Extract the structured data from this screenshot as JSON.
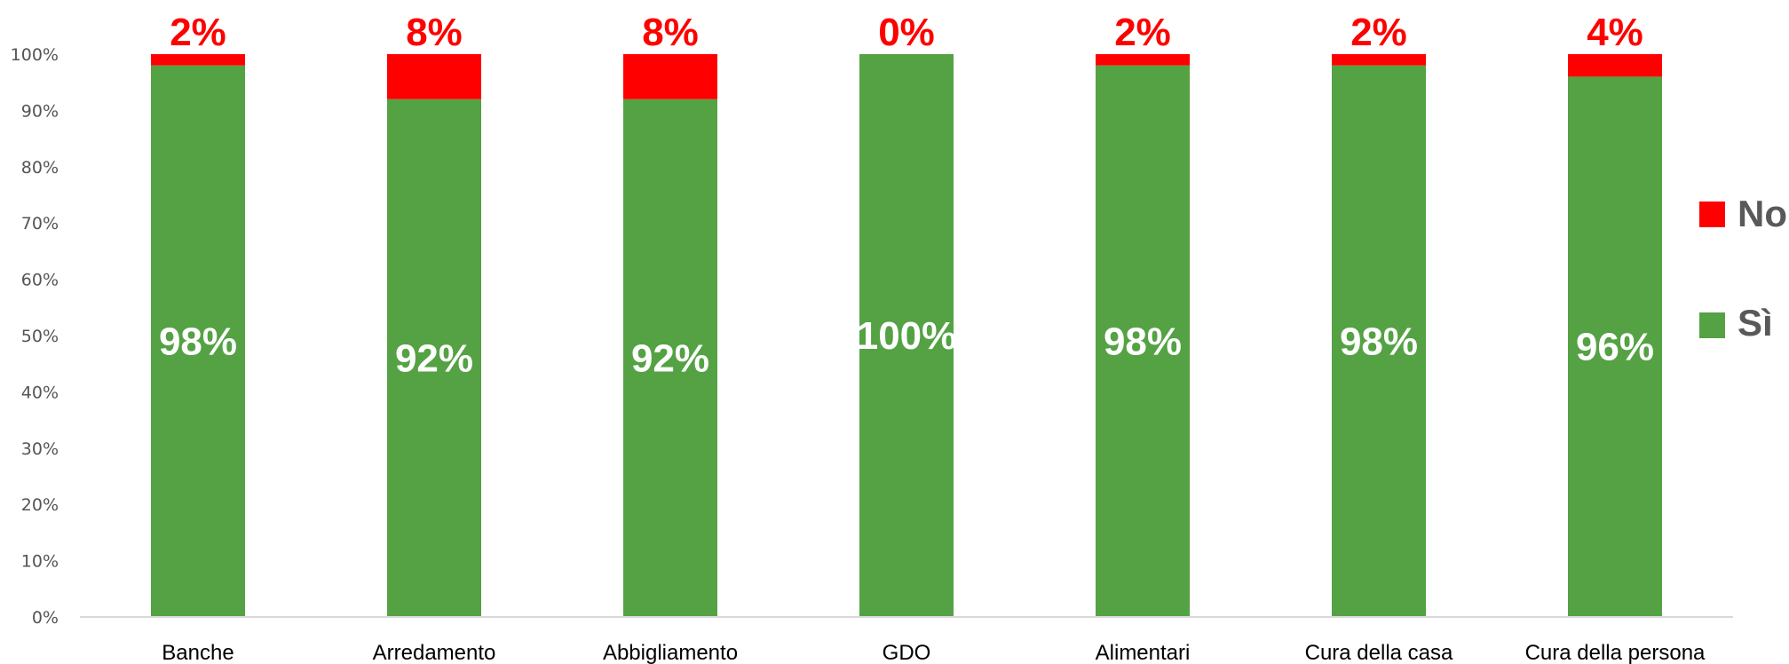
{
  "chart_data": {
    "type": "bar",
    "stacked": true,
    "categories": [
      "Banche",
      "Arredamento",
      "Abbigliamento",
      "GDO",
      "Alimentari",
      "Cura della casa",
      "Cura della persona"
    ],
    "series": [
      {
        "name": "Sì",
        "color": "#54a244",
        "values": [
          98,
          92,
          92,
          100,
          98,
          98,
          96
        ],
        "labels": [
          "98%",
          "92%",
          "92%",
          "100%",
          "98%",
          "98%",
          "96%"
        ]
      },
      {
        "name": "No",
        "color": "#ff0000",
        "values": [
          2,
          8,
          8,
          0,
          2,
          2,
          4
        ],
        "labels": [
          "2%",
          "8%",
          "8%",
          "0%",
          "2%",
          "2%",
          "4%"
        ]
      }
    ],
    "ylim": [
      0,
      100
    ],
    "yticks": [
      "0%",
      "10%",
      "20%",
      "30%",
      "40%",
      "50%",
      "60%",
      "70%",
      "80%",
      "90%",
      "100%"
    ],
    "grid": false,
    "legend": {
      "position": "right",
      "entries": [
        "No",
        "Sì"
      ]
    },
    "title": "",
    "xlabel": "",
    "ylabel": ""
  }
}
